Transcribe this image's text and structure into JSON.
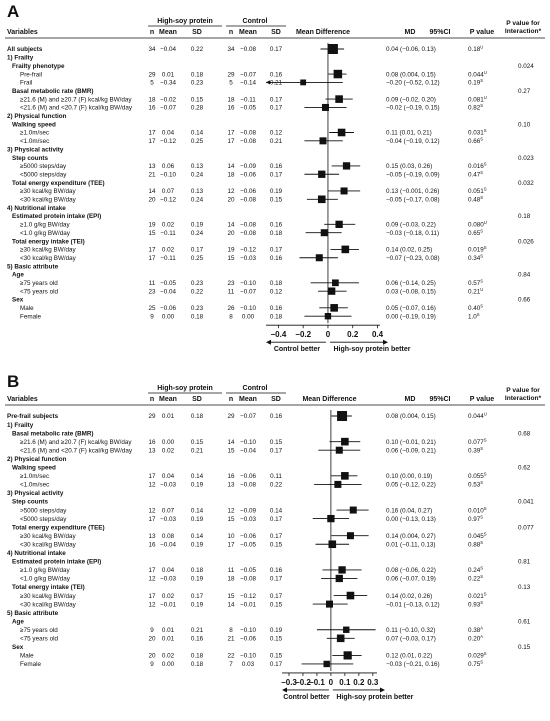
{
  "panels": [
    {
      "label": "A",
      "headers": {
        "variables": "Variables",
        "group1": "High-soy protein",
        "group2": "Control",
        "n": "n",
        "mean": "Mean",
        "sd": "SD",
        "md_title": "Mean Difference",
        "md": "MD",
        "ci": "95%CI",
        "pval": "P value",
        "pint": "P value for Interaction*"
      },
      "rows": [
        {
          "type": "subject",
          "label": "All subjects",
          "n1": "34",
          "m1": "−0.04",
          "s1": "0.22",
          "n2": "34",
          "m2": "−0.08",
          "s2": "0.17",
          "est": "0.04 (−0.06, 0.13)",
          "p": "0.18",
          "sup": "U",
          "md": 0.04,
          "lo": -0.06,
          "hi": 0.13,
          "w": 1.0
        },
        {
          "type": "sec",
          "label": "1) Frailty"
        },
        {
          "type": "cat",
          "label": "Frailty phenotype",
          "pint": "0.024"
        },
        {
          "type": "data",
          "label": "Pre-frail",
          "n1": "29",
          "m1": "0.01",
          "s1": "0.18",
          "n2": "29",
          "m2": "−0.07",
          "s2": "0.16",
          "est": "0.08 (0.004, 0.15)",
          "p": "0.044",
          "sup": "U",
          "md": 0.08,
          "lo": 0.004,
          "hi": 0.15,
          "w": 0.75
        },
        {
          "type": "data",
          "label": "Frail",
          "n1": "5",
          "m1": "−0.34",
          "s1": "0.23",
          "n2": "5",
          "m2": "−0.14",
          "s2": "0.21",
          "est": "−0.20 (−0.52, 0.12)",
          "p": "0.19",
          "sup": "S",
          "md": -0.2,
          "lo": -0.52,
          "hi": 0.12,
          "w": 0.3
        },
        {
          "type": "cat",
          "label": "Basal metabolic rate (BMR)",
          "pint": "0.27"
        },
        {
          "type": "data",
          "label": "≥21.6 (M) and ≥20.7 (F) kcal/kg BW/day",
          "n1": "18",
          "m1": "−0.02",
          "s1": "0.15",
          "n2": "18",
          "m2": "−0.11",
          "s2": "0.17",
          "est": "0.09 (−0.02, 0.20)",
          "p": "0.081",
          "sup": "U",
          "md": 0.09,
          "lo": -0.02,
          "hi": 0.2,
          "w": 0.6
        },
        {
          "type": "data",
          "label": "<21.6 (M) and <20.7 (F) kcal/kg BW/day",
          "n1": "16",
          "m1": "−0.07",
          "s1": "0.28",
          "n2": "16",
          "m2": "−0.05",
          "s2": "0.17",
          "est": "−0.02 (−0.19, 0.15)",
          "p": "0.82",
          "sup": "S",
          "md": -0.02,
          "lo": -0.19,
          "hi": 0.15,
          "w": 0.5
        },
        {
          "type": "sec",
          "label": "2) Physical function"
        },
        {
          "type": "cat",
          "label": "Walking speed",
          "pint": "0.10"
        },
        {
          "type": "data",
          "label": "≥1.0m/sec",
          "n1": "17",
          "m1": "0.04",
          "s1": "0.14",
          "n2": "17",
          "m2": "−0.08",
          "s2": "0.12",
          "est": "0.11 (0.01, 0.21)",
          "p": "0.031",
          "sup": "S",
          "md": 0.11,
          "lo": 0.01,
          "hi": 0.21,
          "w": 0.6
        },
        {
          "type": "data",
          "label": "<1.0m/sec",
          "n1": "17",
          "m1": "−0.12",
          "s1": "0.25",
          "n2": "17",
          "m2": "−0.08",
          "s2": "0.21",
          "est": "−0.04 (−0.19, 0.12)",
          "p": "0.66",
          "sup": "S",
          "md": -0.04,
          "lo": -0.19,
          "hi": 0.12,
          "w": 0.5
        },
        {
          "type": "sec",
          "label": "3) Physical activity"
        },
        {
          "type": "cat",
          "label": "Step counts",
          "pint": "0.023"
        },
        {
          "type": "data",
          "label": "≥5000 steps/day",
          "n1": "13",
          "m1": "0.06",
          "s1": "0.13",
          "n2": "14",
          "m2": "−0.09",
          "s2": "0.16",
          "est": "0.15 (0.03, 0.26)",
          "p": "0.016",
          "sup": "S",
          "md": 0.15,
          "lo": 0.03,
          "hi": 0.26,
          "w": 0.55
        },
        {
          "type": "data",
          "label": "<5000 steps/day",
          "n1": "21",
          "m1": "−0.10",
          "s1": "0.24",
          "n2": "18",
          "m2": "−0.06",
          "s2": "0.17",
          "est": "−0.05 (−0.19, 0.09)",
          "p": "0.47",
          "sup": "S",
          "md": -0.05,
          "lo": -0.19,
          "hi": 0.09,
          "w": 0.55
        },
        {
          "type": "cat",
          "label": "Total energy expenditure (TEE)",
          "pint": "0.032"
        },
        {
          "type": "data",
          "label": "≥30 kcal/kg BW/day",
          "n1": "14",
          "m1": "0.07",
          "s1": "0.13",
          "n2": "12",
          "m2": "−0.06",
          "s2": "0.19",
          "est": "0.13 (−0.001, 0.26)",
          "p": "0.051",
          "sup": "S",
          "md": 0.13,
          "lo": -0.001,
          "hi": 0.26,
          "w": 0.5
        },
        {
          "type": "data",
          "label": "<30 kcal/kg BW/day",
          "n1": "20",
          "m1": "−0.12",
          "s1": "0.24",
          "n2": "20",
          "m2": "−0.08",
          "s2": "0.15",
          "est": "−0.05 (−0.17, 0.08)",
          "p": "0.48",
          "sup": "S",
          "md": -0.05,
          "lo": -0.17,
          "hi": 0.08,
          "w": 0.6
        },
        {
          "type": "sec",
          "label": "4) Nutritional intake"
        },
        {
          "type": "cat",
          "label": "Estimated protein intake (EPI)",
          "pint": "0.18"
        },
        {
          "type": "data",
          "label": "≥1.0 g/kg BW/day",
          "n1": "19",
          "m1": "0.02",
          "s1": "0.19",
          "n2": "14",
          "m2": "−0.08",
          "s2": "0.16",
          "est": "0.09 (−0.03, 0.22)",
          "p": "0.080",
          "sup": "U",
          "md": 0.09,
          "lo": -0.03,
          "hi": 0.22,
          "w": 0.55
        },
        {
          "type": "data",
          "label": "<1.0 g/kg BW/day",
          "n1": "15",
          "m1": "−0.11",
          "s1": "0.24",
          "n2": "20",
          "m2": "−0.08",
          "s2": "0.18",
          "est": "−0.03 (−0.18, 0.11)",
          "p": "0.65",
          "sup": "S",
          "md": -0.03,
          "lo": -0.18,
          "hi": 0.11,
          "w": 0.5
        },
        {
          "type": "cat",
          "label": "Total energy intake (TEI)",
          "pint": "0.026"
        },
        {
          "type": "data",
          "label": "≥30 kcal/kg BW/day",
          "n1": "17",
          "m1": "0.02",
          "s1": "0.17",
          "n2": "19",
          "m2": "−0.12",
          "s2": "0.17",
          "est": "0.14 (0.02, 0.25)",
          "p": "0.019",
          "sup": "S",
          "md": 0.14,
          "lo": 0.02,
          "hi": 0.25,
          "w": 0.6
        },
        {
          "type": "data",
          "label": "<30 kcal/kg BW/day",
          "n1": "17",
          "m1": "−0.11",
          "s1": "0.25",
          "n2": "15",
          "m2": "−0.03",
          "s2": "0.16",
          "est": "−0.07 (−0.23, 0.08)",
          "p": "0.34",
          "sup": "S",
          "md": -0.07,
          "lo": -0.23,
          "hi": 0.08,
          "w": 0.5
        },
        {
          "type": "sec",
          "label": "5) Basic attribute"
        },
        {
          "type": "cat",
          "label": "Age",
          "pint": "0.84"
        },
        {
          "type": "data",
          "label": "≥75 years old",
          "n1": "11",
          "m1": "−0.05",
          "s1": "0.23",
          "n2": "23",
          "m2": "−0.10",
          "s2": "0.18",
          "est": "0.06 (−0.14, 0.25)",
          "p": "0.57",
          "sup": "S",
          "md": 0.06,
          "lo": -0.14,
          "hi": 0.25,
          "w": 0.45
        },
        {
          "type": "data",
          "label": "<75 years old",
          "n1": "23",
          "m1": "−0.04",
          "s1": "0.22",
          "n2": "11",
          "m2": "−0.07",
          "s2": "0.12",
          "est": "0.03 (−0.08, 0.15)",
          "p": "0.21",
          "sup": "U",
          "md": 0.03,
          "lo": -0.08,
          "hi": 0.15,
          "w": 0.55
        },
        {
          "type": "cat",
          "label": "Sex",
          "pint": "0.66"
        },
        {
          "type": "data",
          "label": "Male",
          "n1": "25",
          "m1": "−0.06",
          "s1": "0.23",
          "n2": "26",
          "m2": "−0.10",
          "s2": "0.16",
          "est": "0.05 (−0.07, 0.16)",
          "p": "0.40",
          "sup": "S",
          "md": 0.05,
          "lo": -0.07,
          "hi": 0.16,
          "w": 0.6
        },
        {
          "type": "data",
          "label": "Female",
          "n1": "9",
          "m1": "0.00",
          "s1": "0.18",
          "n2": "8",
          "m2": "0.00",
          "s2": "0.18",
          "est": "0.00 (−0.19, 0.19)",
          "p": "1.0",
          "sup": "S",
          "md": 0.0,
          "lo": -0.19,
          "hi": 0.19,
          "w": 0.4
        }
      ],
      "axis": {
        "min": -0.5,
        "max": 0.42,
        "ticks": [
          -0.4,
          -0.2,
          0,
          0.2,
          0.4
        ],
        "tick_labels": [
          "−0.4",
          "−0.2",
          "0",
          "0.2",
          "0.4"
        ]
      },
      "arrows": {
        "left": "Control better",
        "right": "High-soy protein better"
      }
    },
    {
      "label": "B",
      "headers": {
        "variables": "Variables",
        "group1": "High-soy protein",
        "group2": "Control",
        "n": "n",
        "mean": "Mean",
        "sd": "SD",
        "md_title": "Mean Difference",
        "md": "MD",
        "ci": "95%CI",
        "pval": "P value",
        "pint": "P value for Interaction*"
      },
      "rows": [
        {
          "type": "subject",
          "label": "Pre-frail subjects",
          "n1": "29",
          "m1": "0.01",
          "s1": "0.18",
          "n2": "29",
          "m2": "−0.07",
          "s2": "0.16",
          "est": "0.08 (0.004, 0.15)",
          "p": "0.044",
          "sup": "U",
          "md": 0.08,
          "lo": 0.004,
          "hi": 0.15,
          "w": 1.0
        },
        {
          "type": "sec",
          "label": "1) Frailty"
        },
        {
          "type": "cat",
          "label": "Basal metabolic rate (BMR)",
          "pint": "0.68"
        },
        {
          "type": "data",
          "label": "≥21.6 (M) and ≥20.7 (F) kcal/kg BW/day",
          "n1": "16",
          "m1": "0.00",
          "s1": "0.15",
          "n2": "14",
          "m2": "−0.10",
          "s2": "0.15",
          "est": "0.10 (−0.01, 0.21)",
          "p": "0.077",
          "sup": "S",
          "md": 0.1,
          "lo": -0.01,
          "hi": 0.21,
          "w": 0.6
        },
        {
          "type": "data",
          "label": "<21.6 (M) and <20.7 (F) kcal/kg BW/day",
          "n1": "13",
          "m1": "0.02",
          "s1": "0.21",
          "n2": "15",
          "m2": "−0.04",
          "s2": "0.17",
          "est": "0.06 (−0.09, 0.21)",
          "p": "0.39",
          "sup": "S",
          "md": 0.06,
          "lo": -0.09,
          "hi": 0.21,
          "w": 0.5
        },
        {
          "type": "sec",
          "label": "2) Physical function"
        },
        {
          "type": "cat",
          "label": "Walking speed",
          "pint": "0.62"
        },
        {
          "type": "data",
          "label": "≥1.0m/sec",
          "n1": "17",
          "m1": "0.04",
          "s1": "0.14",
          "n2": "16",
          "m2": "−0.06",
          "s2": "0.11",
          "est": "0.10 (0.00, 0.19)",
          "p": "0.055",
          "sup": "S",
          "md": 0.1,
          "lo": 0.0,
          "hi": 0.19,
          "w": 0.6
        },
        {
          "type": "data",
          "label": "<1.0m/sec",
          "n1": "12",
          "m1": "−0.03",
          "s1": "0.19",
          "n2": "13",
          "m2": "−0.08",
          "s2": "0.22",
          "est": "0.05 (−0.12, 0.22)",
          "p": "0.53",
          "sup": "S",
          "md": 0.05,
          "lo": -0.12,
          "hi": 0.22,
          "w": 0.5
        },
        {
          "type": "sec",
          "label": "3) Physical activity"
        },
        {
          "type": "cat",
          "label": "Step counts",
          "pint": "0.041"
        },
        {
          "type": "data",
          "label": ">5000 steps/day",
          "n1": "12",
          "m1": "0.07",
          "s1": "0.14",
          "n2": "12",
          "m2": "−0.09",
          "s2": "0.14",
          "est": "0.16 (0.04, 0.27)",
          "p": "0.010",
          "sup": "S",
          "md": 0.16,
          "lo": 0.04,
          "hi": 0.27,
          "w": 0.5
        },
        {
          "type": "data",
          "label": "<5000 steps/day",
          "n1": "17",
          "m1": "−0.03",
          "s1": "0.19",
          "n2": "15",
          "m2": "−0.03",
          "s2": "0.17",
          "est": "0.00 (−0.13, 0.13)",
          "p": "0.97",
          "sup": "S",
          "md": 0.0,
          "lo": -0.13,
          "hi": 0.13,
          "w": 0.55
        },
        {
          "type": "cat",
          "label": "Total energy expenditure (TEE)",
          "pint": "0.077"
        },
        {
          "type": "data",
          "label": "≥30 kcal/kg BW/day",
          "n1": "13",
          "m1": "0.08",
          "s1": "0.14",
          "n2": "10",
          "m2": "−0.06",
          "s2": "0.17",
          "est": "0.14 (0.004, 0.27)",
          "p": "0.045",
          "sup": "S",
          "md": 0.14,
          "lo": 0.004,
          "hi": 0.27,
          "w": 0.5
        },
        {
          "type": "data",
          "label": "<30 kcal/kg BW/day",
          "n1": "16",
          "m1": "−0.04",
          "s1": "0.19",
          "n2": "17",
          "m2": "−0.05",
          "s2": "0.15",
          "est": "0.01 (−0.11, 0.13)",
          "p": "0.88",
          "sup": "S",
          "md": 0.01,
          "lo": -0.11,
          "hi": 0.13,
          "w": 0.6
        },
        {
          "type": "sec",
          "label": "4) Nutritional intake"
        },
        {
          "type": "cat",
          "label": "Estimated protein intake (EPI)",
          "pint": "0.81"
        },
        {
          "type": "data",
          "label": "≥1.0 g/kg BW/day",
          "n1": "17",
          "m1": "0.04",
          "s1": "0.18",
          "n2": "11",
          "m2": "−0.05",
          "s2": "0.16",
          "est": "0.08 (−0.06, 0.22)",
          "p": "0.24",
          "sup": "S",
          "md": 0.08,
          "lo": -0.06,
          "hi": 0.22,
          "w": 0.55
        },
        {
          "type": "data",
          "label": "<1.0 g/kg BW/day",
          "n1": "12",
          "m1": "−0.03",
          "s1": "0.19",
          "n2": "18",
          "m2": "−0.08",
          "s2": "0.17",
          "est": "0.06 (−0.07, 0.19)",
          "p": "0.22",
          "sup": "S",
          "md": 0.06,
          "lo": -0.07,
          "hi": 0.19,
          "w": 0.55
        },
        {
          "type": "cat",
          "label": "Total energy intake (TEI)",
          "pint": "0.13"
        },
        {
          "type": "data",
          "label": "≥30 kcal/kg BW/day",
          "n1": "17",
          "m1": "0.02",
          "s1": "0.17",
          "n2": "15",
          "m2": "−0.12",
          "s2": "0.17",
          "est": "0.14 (0.02, 0.26)",
          "p": "0.021",
          "sup": "S",
          "md": 0.14,
          "lo": 0.02,
          "hi": 0.26,
          "w": 0.6
        },
        {
          "type": "data",
          "label": "<30 kcal/kg BW/day",
          "n1": "12",
          "m1": "−0.01",
          "s1": "0.19",
          "n2": "14",
          "m2": "−0.01",
          "s2": "0.15",
          "est": "−0.01 (−0.13, 0.12)",
          "p": "0.93",
          "sup": "S",
          "md": -0.01,
          "lo": -0.13,
          "hi": 0.12,
          "w": 0.5
        },
        {
          "type": "sec",
          "label": "5) Basic attribute"
        },
        {
          "type": "cat",
          "label": "Age",
          "pint": "0.61"
        },
        {
          "type": "data",
          "label": "≥75 years old",
          "n1": "9",
          "m1": "0.01",
          "s1": "0.21",
          "n2": "8",
          "m2": "−0.10",
          "s2": "0.19",
          "est": "0.11 (−0.10, 0.32)",
          "p": "0.38",
          "sup": "A",
          "md": 0.11,
          "lo": -0.1,
          "hi": 0.32,
          "w": 0.4
        },
        {
          "type": "data",
          "label": "<75 years old",
          "n1": "20",
          "m1": "0.01",
          "s1": "0.16",
          "n2": "21",
          "m2": "−0.06",
          "s2": "0.15",
          "est": "0.07 (−0.03, 0.17)",
          "p": "0.20",
          "sup": "A",
          "md": 0.07,
          "lo": -0.03,
          "hi": 0.17,
          "w": 0.6
        },
        {
          "type": "cat",
          "label": "Sex",
          "pint": "0.15"
        },
        {
          "type": "data",
          "label": "Male",
          "n1": "20",
          "m1": "0.02",
          "s1": "0.18",
          "n2": "22",
          "m2": "−0.10",
          "s2": "0.15",
          "est": "0.12 (0.01, 0.22)",
          "p": "0.029",
          "sup": "S",
          "md": 0.12,
          "lo": 0.01,
          "hi": 0.22,
          "w": 0.7
        },
        {
          "type": "data",
          "label": "Female",
          "n1": "9",
          "m1": "0.00",
          "s1": "0.18",
          "n2": "7",
          "m2": "0.03",
          "s2": "0.17",
          "est": "−0.03 (−0.21, 0.16)",
          "p": "0.75",
          "sup": "S",
          "md": -0.03,
          "lo": -0.21,
          "hi": 0.16,
          "w": 0.4
        }
      ],
      "axis": {
        "min": -0.35,
        "max": 0.33,
        "ticks": [
          -0.3,
          -0.2,
          -0.1,
          0,
          0.1,
          0.2,
          0.3
        ],
        "tick_labels": [
          "−0.3",
          "−0.2",
          "−0.1",
          "0",
          "0.1",
          "0.2",
          "0.3"
        ]
      },
      "arrows": {
        "left": "Control better",
        "right": "High-soy protein better"
      }
    }
  ],
  "chart_data": [
    {
      "type": "forest",
      "title": "",
      "xlabel": "",
      "xlim": [
        -0.5,
        0.42
      ],
      "reference_line": 0,
      "series": [
        {
          "name": "Mean Difference"
        }
      ]
    },
    {
      "type": "forest",
      "title": "",
      "xlabel": "",
      "xlim": [
        -0.35,
        0.33
      ],
      "reference_line": 0,
      "series": [
        {
          "name": "Mean Difference"
        }
      ]
    }
  ]
}
